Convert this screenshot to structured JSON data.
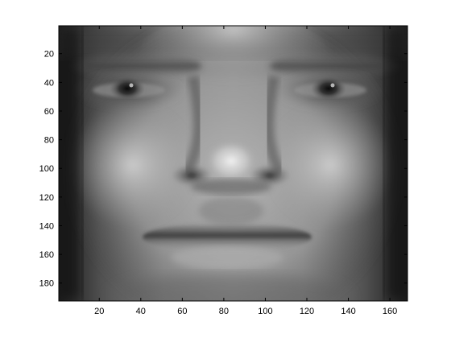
{
  "image_display": {
    "subject": "grayscale face image",
    "colormap": "gray",
    "axes": {
      "x_ticks": [
        20,
        40,
        60,
        80,
        100,
        120,
        140,
        160
      ],
      "y_ticks": [
        20,
        40,
        60,
        80,
        100,
        120,
        140,
        160,
        180
      ],
      "xlim": [
        0.5,
        168.5
      ],
      "ylim": [
        0.5,
        192.5
      ],
      "y_direction": "reverse"
    }
  }
}
